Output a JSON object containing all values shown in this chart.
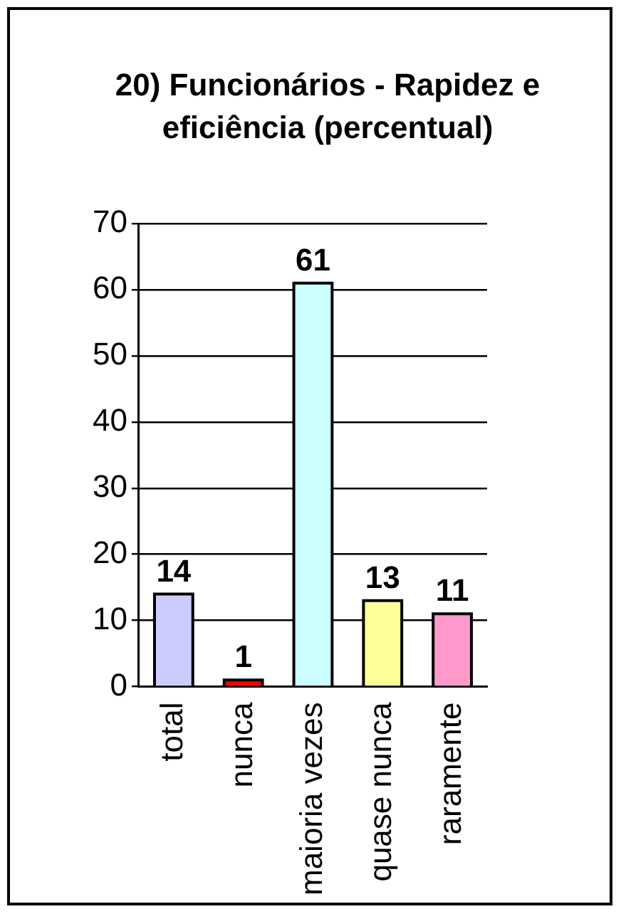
{
  "chart_data": {
    "type": "bar",
    "title": "20) Funcionários - Rapidez e eficiência (percentual)",
    "categories": [
      "total",
      "nunca",
      "maioria vezes",
      "quase nunca",
      "raramente"
    ],
    "values": [
      14,
      1,
      61,
      13,
      11
    ],
    "colors": [
      "#ccccff",
      "#ff0000",
      "#ccffff",
      "#ffff99",
      "#ff99cc"
    ],
    "ylim": [
      0,
      70
    ],
    "yticks": [
      0,
      10,
      20,
      30,
      40,
      50,
      60,
      70
    ],
    "grid": "y",
    "legend": false,
    "data_labels": true
  }
}
